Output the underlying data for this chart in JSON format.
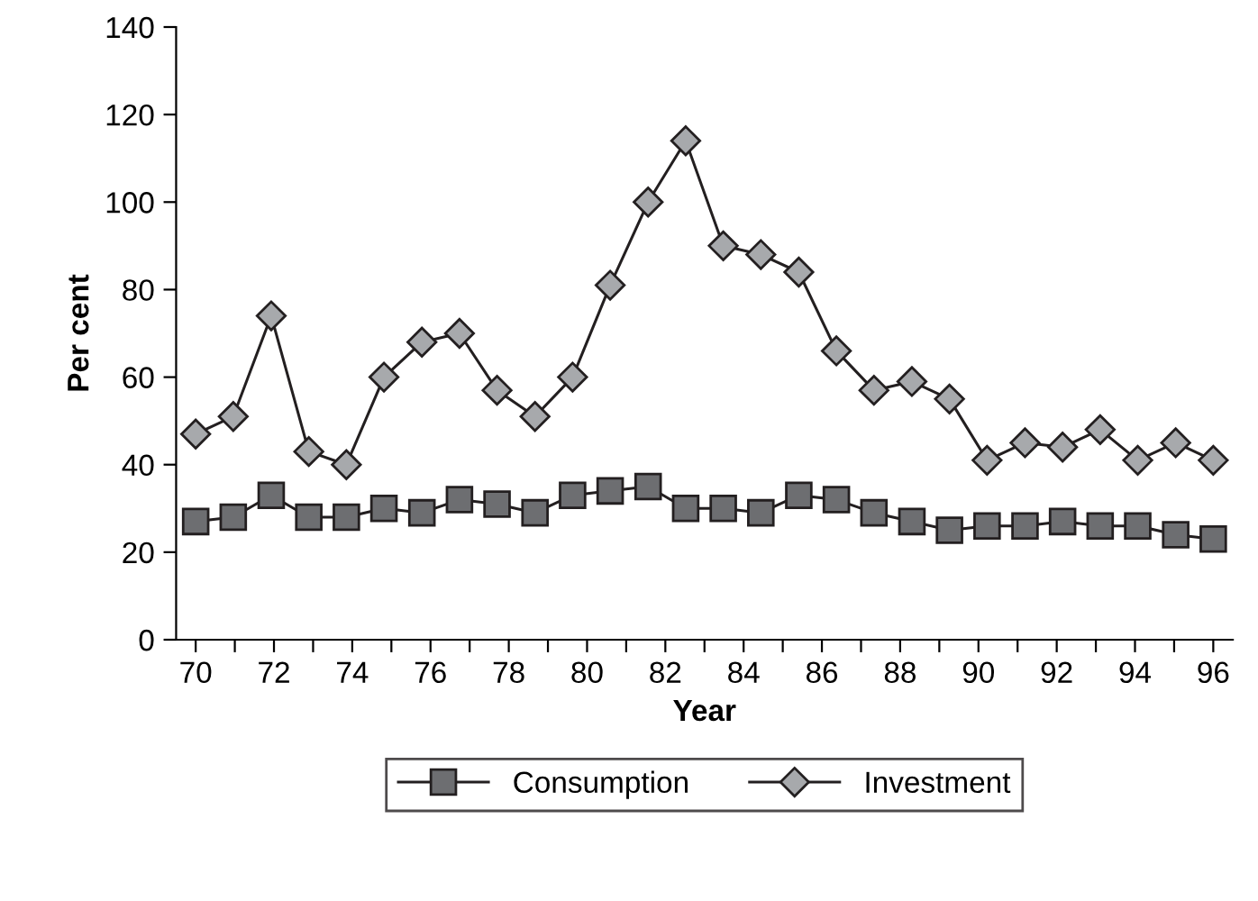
{
  "chart_data": {
    "type": "line",
    "xlabel": "Year",
    "ylabel": "Per cent",
    "x": [
      70,
      70.96,
      71.93,
      72.89,
      73.85,
      74.81,
      75.78,
      76.74,
      77.7,
      78.67,
      79.63,
      80.59,
      81.56,
      82.52,
      83.48,
      84.44,
      85.41,
      86.37,
      87.33,
      88.3,
      89.26,
      90.22,
      91.19,
      92.15,
      93.11,
      94.07,
      95.04,
      96
    ],
    "series": [
      {
        "name": "Consumption",
        "color": "#6d6e71",
        "marker": "square",
        "values": [
          27,
          28,
          33,
          28,
          28,
          30,
          29,
          32,
          31,
          29,
          33,
          34,
          35,
          30,
          30,
          29,
          33,
          32,
          29,
          27,
          25,
          26,
          26,
          27,
          26,
          26,
          24,
          23
        ]
      },
      {
        "name": "Investment",
        "color": "#a7a9ac",
        "marker": "diamond",
        "values": [
          47,
          51,
          74,
          43,
          40,
          60,
          68,
          70,
          57,
          51,
          60,
          81,
          100,
          114,
          90,
          88,
          84,
          66,
          57,
          59,
          55,
          41,
          45,
          44,
          48,
          41,
          45,
          41
        ]
      }
    ],
    "xlim": [
      69.5,
      96.5
    ],
    "xticks": [
      70,
      {
        "value": 71,
        "label": null
      },
      72,
      {
        "value": 73,
        "label": null
      },
      74,
      {
        "value": 75,
        "label": null
      },
      76,
      {
        "value": 77,
        "label": null
      },
      78,
      {
        "value": 79,
        "label": null
      },
      80,
      {
        "value": 81,
        "label": null
      },
      82,
      {
        "value": 83,
        "label": null
      },
      84,
      {
        "value": 85,
        "label": null
      },
      86,
      {
        "value": 87,
        "label": null
      },
      88,
      {
        "value": 89,
        "label": null
      },
      90,
      {
        "value": 91,
        "label": null
      },
      92,
      {
        "value": 93,
        "label": null
      },
      94,
      {
        "value": 95,
        "label": null
      },
      96
    ],
    "ylim": [
      0,
      140
    ],
    "yticks": [
      0,
      20,
      40,
      60,
      80,
      100,
      120,
      140
    ],
    "grid": false,
    "legend": "bottom",
    "line_style": "solid"
  }
}
